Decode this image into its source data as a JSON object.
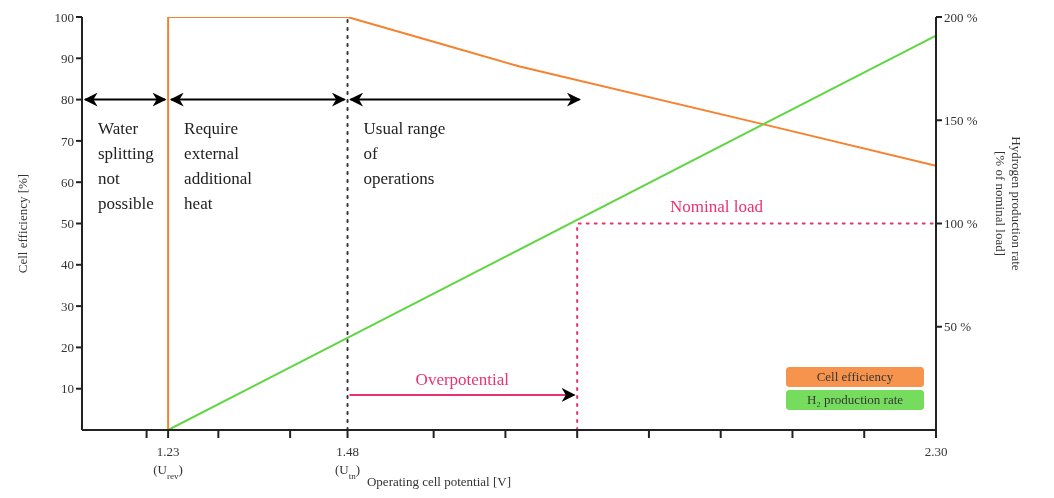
{
  "chart_data": {
    "type": "line",
    "xlabel": "Operating cell potential [V]",
    "ylabel": "Cell efficiency [%]",
    "y2label": "Hydrogen production rate [% of nominal load]",
    "xlim": [
      1.11,
      2.3
    ],
    "xticks": [
      {
        "value": 1.2,
        "label": null
      },
      {
        "value": 1.23,
        "label": "1.23 (U$_{rev}$)"
      },
      {
        "value": 1.3,
        "label": null
      },
      {
        "value": 1.4,
        "label": null
      },
      {
        "value": 1.48,
        "label": "1.48 (U$_{tn}$)"
      },
      {
        "value": 1.6,
        "label": null
      },
      {
        "value": 1.7,
        "label": null
      },
      {
        "value": 1.8,
        "label": null
      },
      {
        "value": 1.9,
        "label": null
      },
      {
        "value": 2.0,
        "label": null
      },
      {
        "value": 2.1,
        "label": null
      },
      {
        "value": 2.2,
        "label": null
      },
      {
        "value": 2.3,
        "label": "2.30"
      }
    ],
    "ylim": [
      0,
      100
    ],
    "yticks": [
      10,
      20,
      30,
      40,
      50,
      60,
      70,
      80,
      90,
      100
    ],
    "y2lim": [
      0,
      200
    ],
    "y2ticks": [
      {
        "value": 50,
        "label": "50 %"
      },
      {
        "value": 100,
        "label": "100 %"
      },
      {
        "value": 150,
        "label": "150 %"
      },
      {
        "value": 200,
        "label": "200 %"
      }
    ],
    "series": [
      {
        "name": "Cell efficiency",
        "color": "#f5822e",
        "x": [
          1.23,
          1.23,
          1.48,
          1.6,
          1.72,
          2.06,
          2.3
        ],
        "values": [
          0,
          100,
          100,
          94,
          88,
          74,
          64
        ]
      },
      {
        "name": "H₂ production rate",
        "color": "#5fd642",
        "axis": "y2",
        "x": [
          1.23,
          2.3
        ],
        "values": [
          0,
          191
        ]
      },
      {
        "color": "#e8336e",
        "axis": "y2",
        "line_style": "dotted",
        "x": [
          1.8,
          1.8,
          2.3
        ],
        "values": [
          0,
          100,
          100
        ]
      }
    ],
    "ref_lines": [
      {
        "axis": "x",
        "value": 1.48,
        "color": "#333333",
        "line_style": "dotted"
      }
    ],
    "annotations": [
      "Water splitting not possible",
      "Require external additional heat",
      "Usual range of operations",
      "Overpotential",
      "Nominal load"
    ],
    "legend": "bottom right",
    "grid": false
  }
}
